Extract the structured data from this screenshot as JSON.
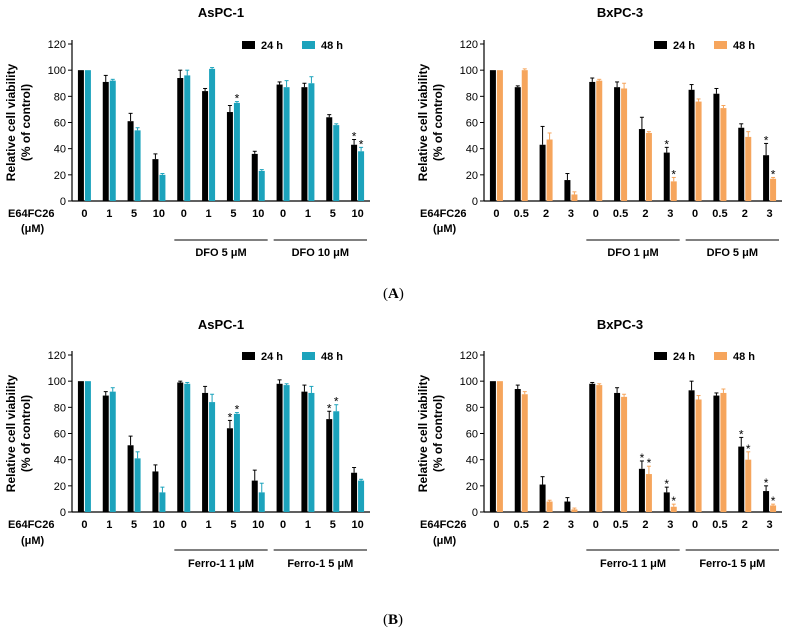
{
  "panels": [
    {
      "label": "A",
      "label_open": "(",
      "label_close": ")"
    },
    {
      "label": "B",
      "label_open": "(",
      "label_close": ")"
    }
  ],
  "chart_data": [
    {
      "type": "bar",
      "panel": "A",
      "title": "AsPC-1",
      "ylabel_line1": "Relative cell viability",
      "ylabel_line2": "(% of control)",
      "ylim": [
        0,
        120
      ],
      "yticks": [
        0,
        20,
        40,
        60,
        80,
        100,
        120
      ],
      "row_label": "E64FC26",
      "row_unit": "(μM)",
      "categories": [
        "0",
        "1",
        "5",
        "10",
        "0",
        "1",
        "5",
        "10",
        "0",
        "1",
        "5",
        "10"
      ],
      "groups": [
        {
          "label": "DFO 5 μM",
          "start": 4,
          "end": 7
        },
        {
          "label": "DFO 10 μM",
          "start": 8,
          "end": 11
        }
      ],
      "legend_position": "top-right",
      "series": [
        {
          "name": "24 h",
          "color": "#000000",
          "values": [
            100,
            91,
            61,
            32,
            94,
            84,
            68,
            36,
            89,
            87,
            64,
            43
          ],
          "errors": [
            0,
            5,
            6,
            4,
            6,
            2,
            5,
            2,
            2,
            3,
            2,
            4
          ],
          "stars": [
            "",
            "",
            "",
            "",
            "",
            "",
            "",
            "",
            "",
            "",
            "",
            "*"
          ]
        },
        {
          "name": "48 h",
          "color": "#1CA3BC",
          "values": [
            100,
            92,
            54,
            20,
            96,
            101,
            75,
            23,
            87,
            90,
            58,
            38
          ],
          "errors": [
            0,
            1,
            2,
            1,
            4,
            1,
            1,
            1,
            5,
            5,
            1,
            3
          ],
          "stars": [
            "",
            "",
            "",
            "",
            "",
            "",
            "*",
            "",
            "",
            "",
            "",
            "*"
          ]
        }
      ]
    },
    {
      "type": "bar",
      "panel": "A",
      "title": "BxPC-3",
      "ylabel_line1": "Relative cell viability",
      "ylabel_line2": "(% of control)",
      "ylim": [
        0,
        120
      ],
      "yticks": [
        0,
        20,
        40,
        60,
        80,
        100,
        120
      ],
      "row_label": "E64FC26",
      "row_unit": "(μM)",
      "categories": [
        "0",
        "0.5",
        "2",
        "3",
        "0",
        "0.5",
        "2",
        "3",
        "0",
        "0.5",
        "2",
        "3"
      ],
      "groups": [
        {
          "label": "DFO 1 μM",
          "start": 4,
          "end": 7
        },
        {
          "label": "DFO 5 μM",
          "start": 8,
          "end": 11
        }
      ],
      "legend_position": "top-right",
      "series": [
        {
          "name": "24 h",
          "color": "#000000",
          "values": [
            100,
            87,
            43,
            16,
            91,
            87,
            55,
            37,
            85,
            82,
            56,
            35
          ],
          "errors": [
            0,
            1,
            14,
            5,
            3,
            4,
            9,
            4,
            4,
            4,
            3,
            9
          ],
          "stars": [
            "",
            "",
            "",
            "",
            "",
            "",
            "",
            "*",
            "",
            "",
            "",
            "*"
          ]
        },
        {
          "name": "48 h",
          "color": "#F6A55C",
          "values": [
            100,
            100,
            47,
            5,
            92,
            86,
            52,
            15,
            76,
            71,
            49,
            17
          ],
          "errors": [
            0,
            1,
            5,
            2,
            1,
            4,
            1,
            3,
            2,
            2,
            4,
            1
          ],
          "stars": [
            "",
            "",
            "",
            "",
            "",
            "",
            "",
            "*",
            "",
            "",
            "",
            "*"
          ]
        }
      ]
    },
    {
      "type": "bar",
      "panel": "B",
      "title": "AsPC-1",
      "ylabel_line1": "Relative cell viability",
      "ylabel_line2": "(% of control)",
      "ylim": [
        0,
        120
      ],
      "yticks": [
        0,
        20,
        40,
        60,
        80,
        100,
        120
      ],
      "row_label": "E64FC26",
      "row_unit": "(μM)",
      "categories": [
        "0",
        "1",
        "5",
        "10",
        "0",
        "1",
        "5",
        "10",
        "0",
        "1",
        "5",
        "10"
      ],
      "groups": [
        {
          "label": "Ferro-1 1 μM",
          "start": 4,
          "end": 7
        },
        {
          "label": "Ferro-1 5 μM",
          "start": 8,
          "end": 11
        }
      ],
      "legend_position": "top-right",
      "series": [
        {
          "name": "24 h",
          "color": "#000000",
          "values": [
            100,
            89,
            51,
            31,
            99,
            91,
            64,
            24,
            98,
            92,
            71,
            30
          ],
          "errors": [
            0,
            3,
            7,
            5,
            1,
            5,
            6,
            8,
            3,
            5,
            6,
            4
          ],
          "stars": [
            "",
            "",
            "",
            "",
            "",
            "",
            "*",
            "",
            "",
            "",
            "*",
            ""
          ]
        },
        {
          "name": "48 h",
          "color": "#1CA3BC",
          "values": [
            100,
            92,
            41,
            15,
            98,
            84,
            75,
            15,
            97,
            91,
            77,
            24
          ],
          "errors": [
            0,
            3,
            5,
            4,
            1,
            6,
            1,
            7,
            1,
            5,
            5,
            1
          ],
          "stars": [
            "",
            "",
            "",
            "",
            "",
            "",
            "*",
            "",
            "",
            "",
            "*",
            ""
          ]
        }
      ]
    },
    {
      "type": "bar",
      "panel": "B",
      "title": "BxPC-3",
      "ylabel_line1": "Relative cell viability",
      "ylabel_line2": "(% of control)",
      "ylim": [
        0,
        120
      ],
      "yticks": [
        0,
        20,
        40,
        60,
        80,
        100,
        120
      ],
      "row_label": "E64FC26",
      "row_unit": "(μM)",
      "categories": [
        "0",
        "0.5",
        "2",
        "3",
        "0",
        "0.5",
        "2",
        "3",
        "0",
        "0.5",
        "2",
        "3"
      ],
      "groups": [
        {
          "label": "Ferro-1 1 μM",
          "start": 4,
          "end": 7
        },
        {
          "label": "Ferro-1 5 μM",
          "start": 8,
          "end": 11
        }
      ],
      "legend_position": "top-right",
      "series": [
        {
          "name": "24 h",
          "color": "#000000",
          "values": [
            100,
            94,
            21,
            8,
            98,
            91,
            33,
            15,
            93,
            89,
            50,
            16
          ],
          "errors": [
            0,
            3,
            6,
            3,
            1,
            4,
            6,
            4,
            7,
            2,
            7,
            4
          ],
          "stars": [
            "",
            "",
            "",
            "",
            "",
            "",
            "*",
            "*",
            "",
            "",
            "*",
            "*"
          ]
        },
        {
          "name": "48 h",
          "color": "#F6A55C",
          "values": [
            100,
            90,
            8,
            2,
            97,
            88,
            29,
            4,
            86,
            91,
            40,
            5
          ],
          "errors": [
            0,
            2,
            1,
            1,
            1,
            2,
            6,
            2,
            3,
            3,
            6,
            1
          ],
          "stars": [
            "",
            "",
            "",
            "",
            "",
            "",
            "*",
            "*",
            "",
            "",
            "*",
            "*"
          ]
        }
      ]
    }
  ]
}
